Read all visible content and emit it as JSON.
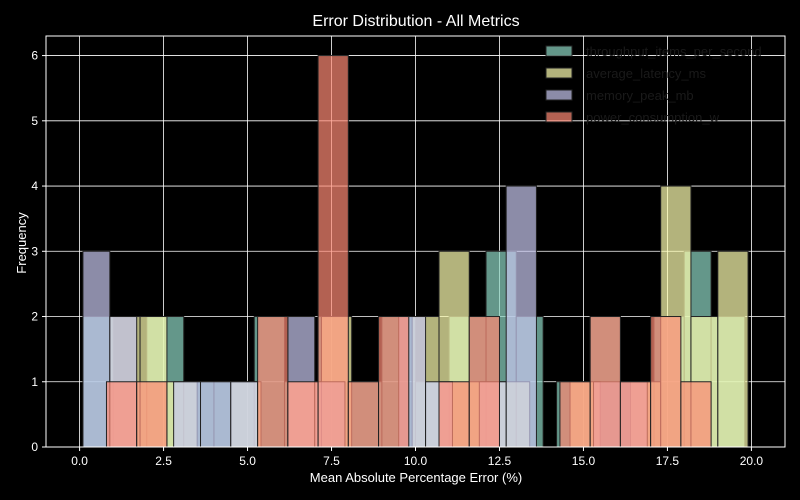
{
  "chart_data": {
    "type": "histogram",
    "title": "Error Distribution - All Metrics",
    "xlabel": "Mean Absolute Percentage Error (%)",
    "ylabel": "Frequency",
    "xlim": [
      -1.0,
      21.0
    ],
    "ylim": [
      0,
      6.3
    ],
    "xticks": [
      "0.0",
      "2.5",
      "5.0",
      "7.5",
      "10.0",
      "12.5",
      "15.0",
      "17.5",
      "20.0"
    ],
    "yticks": [
      "0",
      "1",
      "2",
      "3",
      "4",
      "5",
      "6"
    ],
    "grid": true,
    "legend_position": "top-right",
    "series": [
      {
        "name": "throughput_items_per_second",
        "color": "#8FD7C4",
        "bins": [
          [
            0.1,
            1.0,
            2
          ],
          [
            1.0,
            2.0,
            1
          ],
          [
            2.0,
            3.1,
            2
          ],
          [
            3.1,
            4.0,
            1
          ],
          [
            4.0,
            5.2,
            1
          ],
          [
            5.2,
            6.1,
            2
          ],
          [
            6.1,
            7.1,
            1
          ],
          [
            7.1,
            8.0,
            2
          ],
          [
            8.0,
            9.0,
            1
          ],
          [
            9.0,
            10.0,
            2
          ],
          [
            10.0,
            11.0,
            1
          ],
          [
            11.0,
            12.1,
            2
          ],
          [
            12.1,
            13.0,
            3
          ],
          [
            13.0,
            13.8,
            2
          ],
          [
            14.2,
            15.2,
            1
          ],
          [
            15.2,
            16.1,
            2
          ],
          [
            16.1,
            17.1,
            1
          ],
          [
            17.1,
            18.0,
            2
          ],
          [
            18.0,
            18.8,
            3
          ],
          [
            18.8,
            19.8,
            2
          ]
        ]
      },
      {
        "name": "average_latency_ms",
        "color": "#FFFFB0",
        "bins": [
          [
            0.9,
            1.8,
            2
          ],
          [
            1.8,
            2.6,
            2
          ],
          [
            2.6,
            3.5,
            1
          ],
          [
            4.5,
            5.4,
            1
          ],
          [
            6.2,
            7.2,
            1
          ],
          [
            7.2,
            8.1,
            2
          ],
          [
            9.9,
            10.7,
            2
          ],
          [
            10.7,
            11.6,
            3
          ],
          [
            11.6,
            12.5,
            1
          ],
          [
            12.5,
            13.4,
            1
          ],
          [
            14.6,
            15.5,
            1
          ],
          [
            16.4,
            17.3,
            1
          ],
          [
            17.3,
            18.2,
            4
          ],
          [
            18.2,
            19.0,
            2
          ],
          [
            19.0,
            19.9,
            3
          ]
        ]
      },
      {
        "name": "memory_peak_mb",
        "color": "#C8C8F0",
        "bins": [
          [
            0.1,
            0.9,
            3
          ],
          [
            0.9,
            1.7,
            2
          ],
          [
            2.8,
            3.6,
            1
          ],
          [
            3.6,
            4.5,
            1
          ],
          [
            4.5,
            5.3,
            1
          ],
          [
            6.2,
            7.0,
            2
          ],
          [
            7.0,
            7.9,
            1
          ],
          [
            9.5,
            10.3,
            2
          ],
          [
            10.3,
            11.1,
            1
          ],
          [
            11.9,
            12.7,
            1
          ],
          [
            12.7,
            13.6,
            4
          ],
          [
            15.3,
            16.1,
            1
          ],
          [
            16.1,
            16.9,
            1
          ]
        ]
      },
      {
        "name": "power_consumption_w",
        "color": "#FF8A75",
        "bins": [
          [
            0.8,
            1.7,
            1
          ],
          [
            1.7,
            2.6,
            1
          ],
          [
            5.3,
            6.2,
            2
          ],
          [
            6.2,
            7.1,
            1
          ],
          [
            7.1,
            8.0,
            6
          ],
          [
            8.0,
            8.9,
            1
          ],
          [
            8.9,
            9.8,
            2
          ],
          [
            10.7,
            11.6,
            1
          ],
          [
            11.6,
            12.5,
            2
          ],
          [
            14.3,
            15.2,
            1
          ],
          [
            15.2,
            16.1,
            2
          ],
          [
            16.1,
            17.0,
            1
          ],
          [
            17.0,
            17.9,
            2
          ],
          [
            17.9,
            18.8,
            1
          ]
        ]
      }
    ]
  }
}
